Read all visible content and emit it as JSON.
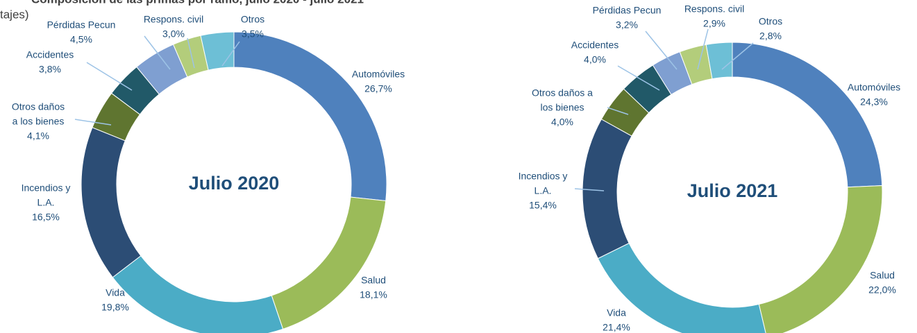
{
  "header": {
    "title": "Composición de las primas por ramo, julio 2020 - julio 2021",
    "subtitle": "tajes)"
  },
  "chart_data": [
    {
      "type": "donut",
      "center_label": "Julio 2020",
      "categories": [
        [
          "Automóviles"
        ],
        [
          "Salud"
        ],
        [
          "Vida"
        ],
        [
          "Incendios y",
          "L.A."
        ],
        [
          "Otros daños",
          "a los bienes"
        ],
        [
          "Accidentes"
        ],
        [
          "Pérdidas Pecun"
        ],
        [
          "Respons. civil"
        ],
        [
          "Otros"
        ]
      ],
      "values": [
        26.7,
        18.1,
        19.8,
        16.5,
        4.1,
        3.8,
        4.5,
        3.0,
        3.5
      ],
      "value_labels": [
        "26,7%",
        "18,1%",
        "19,8%",
        "16,5%",
        "4,1%",
        "3,8%",
        "4,5%",
        "3,0%",
        "3,5%"
      ],
      "colors": [
        "#4f81bd",
        "#9bbb59",
        "#4bacc6",
        "#2c4d75",
        "#5f7530",
        "#215968",
        "#7f9fd1",
        "#b3cd7b",
        "#6dbfd6"
      ]
    },
    {
      "type": "donut",
      "center_label": "Julio 2021",
      "categories": [
        [
          "Automóviles"
        ],
        [
          "Salud"
        ],
        [
          "Vida"
        ],
        [
          "Incendios y",
          "L.A."
        ],
        [
          "Otros daños a",
          "los bienes"
        ],
        [
          "Accidentes"
        ],
        [
          "Pérdidas Pecun"
        ],
        [
          "Respons. civil"
        ],
        [
          "Otros"
        ]
      ],
      "values": [
        24.3,
        22.0,
        21.4,
        15.4,
        4.0,
        4.0,
        3.2,
        2.9,
        2.8
      ],
      "value_labels": [
        "24,3%",
        "22,0%",
        "21,4%",
        "15,4%",
        "4,0%",
        "4,0%",
        "3,2%",
        "2,9%",
        "2,8%"
      ],
      "colors": [
        "#4f81bd",
        "#9bbb59",
        "#4bacc6",
        "#2c4d75",
        "#5f7530",
        "#215968",
        "#7f9fd1",
        "#b3cd7b",
        "#6dbfd6"
      ]
    }
  ]
}
